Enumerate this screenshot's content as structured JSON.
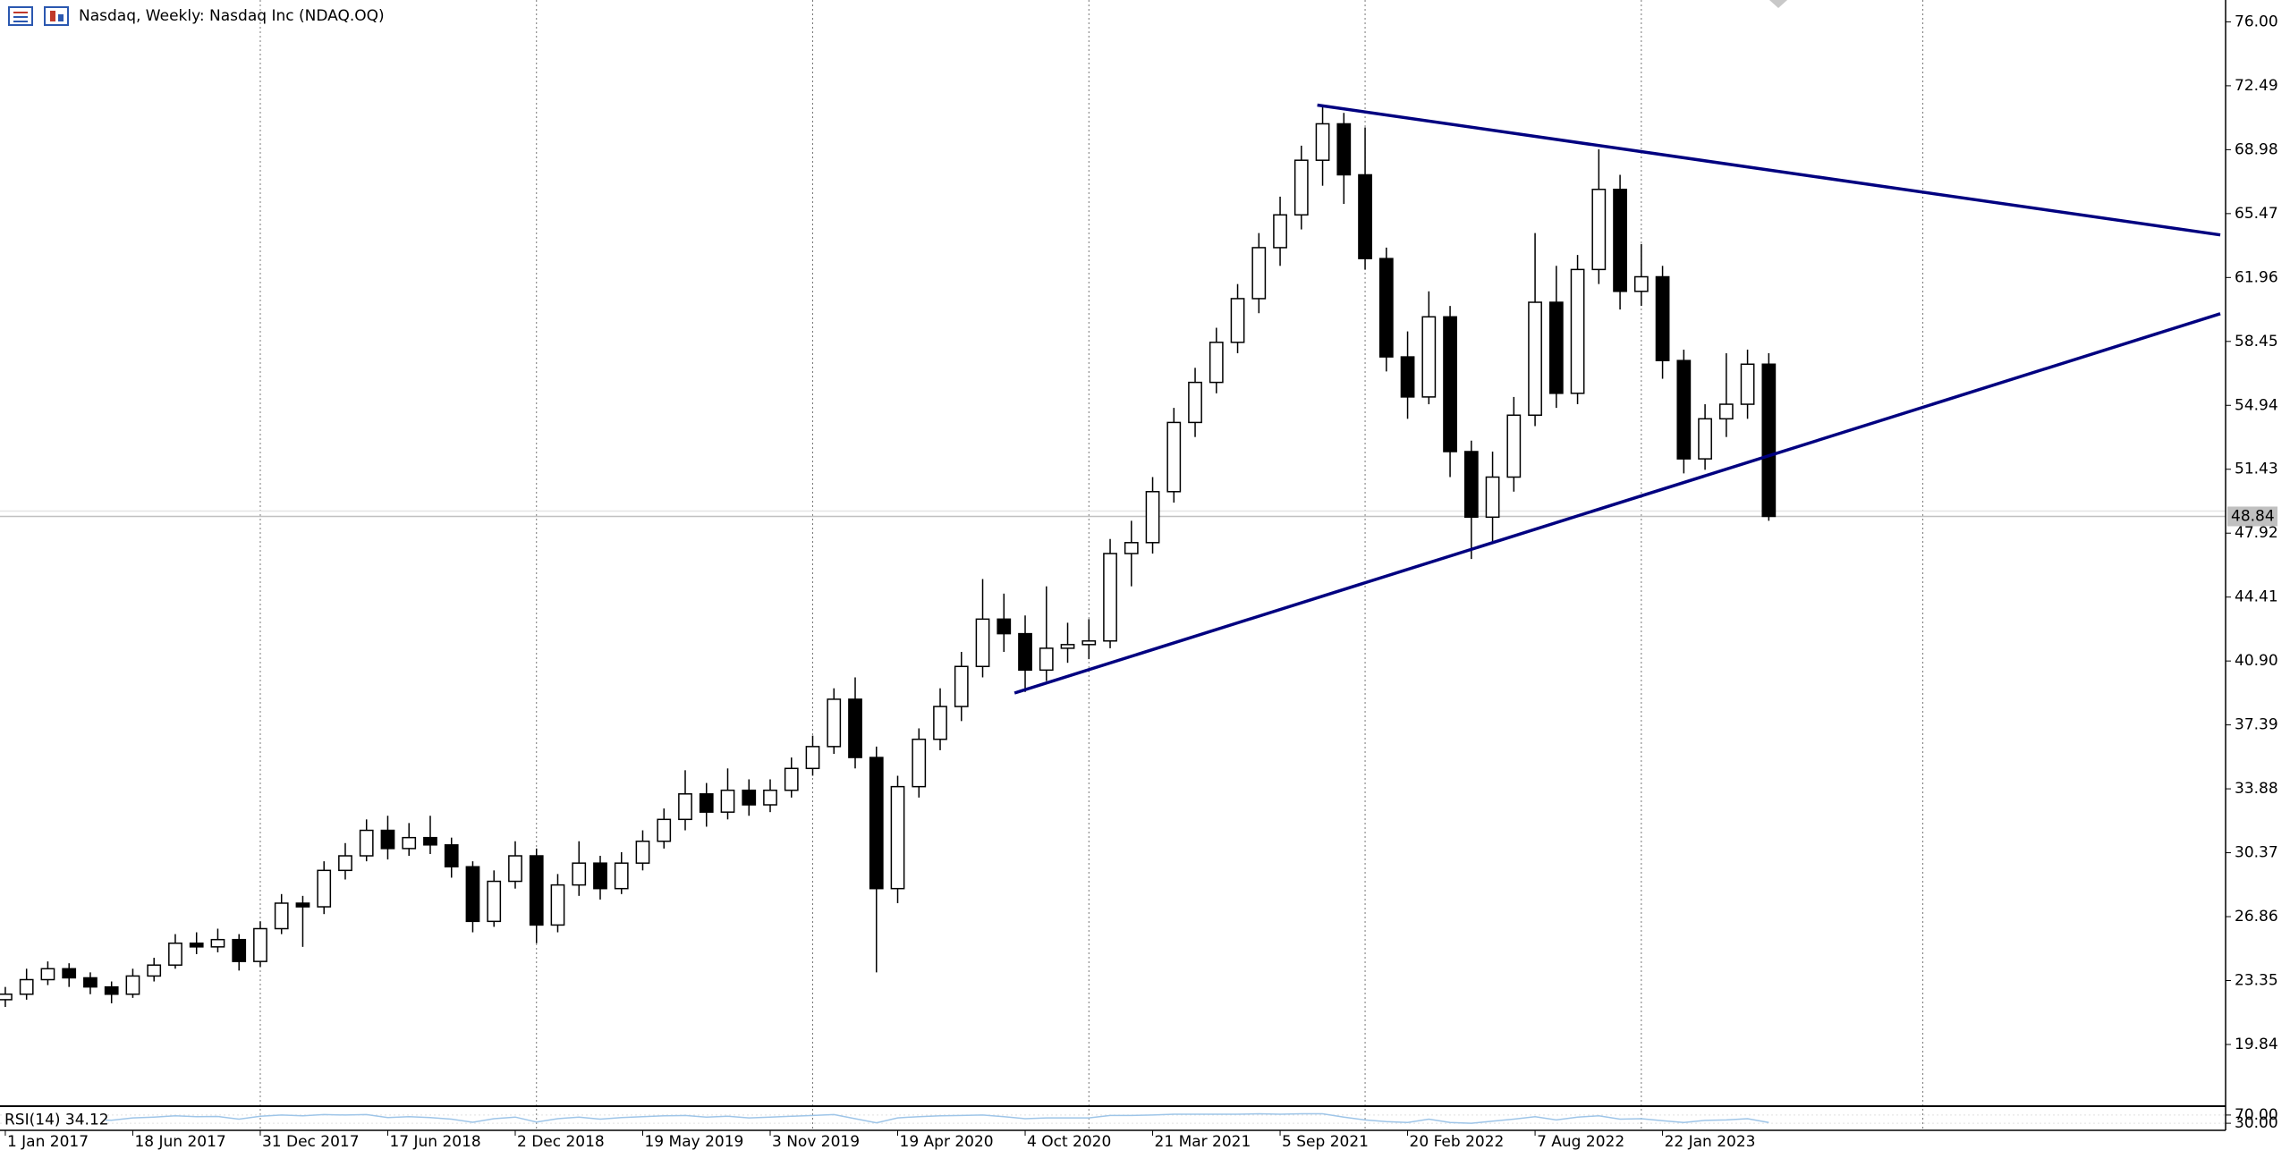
{
  "chart_data": {
    "type": "candlestick",
    "title": "Nasdaq, Weekly:  Nasdaq Inc (NDAQ.OQ)",
    "x": [
      0,
      4,
      8,
      12,
      16,
      20,
      24,
      28,
      32,
      36,
      40,
      44,
      48,
      52,
      56,
      60,
      64,
      68,
      72,
      76,
      80,
      84,
      88,
      92,
      96,
      100,
      104,
      108,
      112,
      116,
      120,
      124,
      128,
      132,
      136,
      140,
      144,
      148,
      152,
      156,
      160,
      164,
      168,
      172,
      176,
      180,
      184,
      188,
      192,
      196,
      200,
      204,
      208,
      212,
      216,
      220,
      224,
      228,
      232,
      236,
      240,
      244,
      248,
      252,
      256,
      260,
      264,
      268,
      272,
      276,
      280,
      284,
      288,
      292,
      296,
      300,
      304,
      308,
      312,
      316,
      320,
      324,
      328,
      332
    ],
    "open": [
      22.3,
      22.6,
      23.4,
      24.0,
      23.5,
      23.0,
      22.6,
      23.6,
      24.2,
      25.4,
      25.2,
      25.6,
      24.4,
      26.2,
      27.6,
      27.4,
      29.4,
      30.2,
      31.6,
      30.6,
      31.2,
      30.8,
      29.6,
      26.6,
      28.8,
      30.2,
      26.4,
      28.6,
      29.8,
      28.4,
      29.8,
      31.0,
      32.2,
      33.6,
      32.6,
      33.8,
      33.0,
      33.8,
      35.0,
      36.2,
      38.8,
      35.6,
      28.4,
      34.0,
      36.6,
      38.4,
      40.6,
      43.2,
      42.4,
      40.4,
      41.6,
      41.8,
      42.0,
      46.8,
      47.4,
      50.2,
      54.0,
      56.2,
      58.4,
      60.8,
      63.6,
      65.4,
      68.4,
      70.4,
      67.6,
      63.0,
      57.6,
      55.4,
      59.8,
      52.4,
      48.8,
      51.0,
      54.4,
      60.6,
      55.6,
      62.4,
      66.8,
      61.2,
      62.0,
      57.4,
      52.0,
      54.2,
      55.0,
      57.2
    ],
    "high": [
      23.0,
      24.0,
      24.4,
      24.3,
      23.8,
      23.3,
      24.0,
      24.6,
      25.9,
      26.0,
      26.2,
      25.9,
      26.6,
      28.1,
      28.0,
      29.9,
      30.9,
      32.2,
      32.4,
      32.0,
      32.4,
      31.2,
      29.9,
      29.4,
      31.0,
      30.6,
      29.2,
      31.0,
      30.2,
      30.4,
      31.6,
      32.8,
      34.9,
      34.2,
      35.0,
      34.4,
      34.4,
      35.6,
      36.8,
      39.4,
      40.0,
      36.2,
      34.6,
      37.2,
      39.4,
      41.4,
      45.4,
      44.6,
      43.4,
      45.0,
      43.0,
      43.2,
      47.6,
      48.6,
      51.0,
      54.8,
      57.0,
      59.2,
      61.6,
      64.4,
      66.4,
      69.2,
      71.4,
      71.0,
      70.2,
      63.6,
      59.0,
      61.2,
      60.4,
      53.0,
      52.4,
      55.4,
      64.4,
      62.6,
      63.2,
      69.0,
      67.6,
      63.8,
      62.6,
      58.0,
      55.0,
      57.8,
      58.0,
      57.8
    ],
    "low": [
      21.9,
      22.3,
      23.1,
      23.0,
      22.6,
      22.1,
      22.4,
      23.3,
      24.0,
      24.8,
      24.9,
      23.9,
      24.1,
      25.9,
      25.2,
      27.0,
      28.9,
      29.9,
      30.0,
      30.2,
      30.3,
      29.0,
      26.0,
      26.3,
      28.4,
      25.4,
      26.0,
      28.0,
      27.8,
      28.1,
      29.4,
      30.6,
      31.6,
      31.8,
      32.2,
      32.4,
      32.6,
      33.4,
      34.6,
      35.8,
      35.0,
      23.8,
      27.6,
      33.4,
      36.0,
      37.6,
      40.0,
      41.4,
      39.2,
      39.8,
      40.8,
      41.0,
      41.6,
      45.0,
      46.8,
      49.6,
      53.2,
      55.6,
      57.8,
      60.0,
      62.6,
      64.6,
      67.0,
      66.0,
      62.4,
      56.8,
      54.2,
      55.0,
      51.0,
      46.5,
      47.4,
      50.2,
      53.8,
      54.8,
      55.0,
      61.6,
      60.2,
      60.4,
      56.4,
      51.2,
      51.4,
      53.2,
      54.2,
      48.6
    ],
    "close": [
      22.6,
      23.4,
      24.0,
      23.5,
      23.0,
      22.6,
      23.6,
      24.2,
      25.4,
      25.2,
      25.6,
      24.4,
      26.2,
      27.6,
      27.4,
      29.4,
      30.2,
      31.6,
      30.6,
      31.2,
      30.8,
      29.6,
      26.6,
      28.8,
      30.2,
      26.4,
      28.6,
      29.8,
      28.4,
      29.8,
      31.0,
      32.2,
      33.6,
      32.6,
      33.8,
      33.0,
      33.8,
      35.0,
      36.2,
      38.8,
      35.6,
      28.4,
      34.0,
      36.6,
      38.4,
      40.6,
      43.2,
      42.4,
      40.4,
      41.6,
      41.8,
      42.0,
      46.8,
      47.4,
      50.2,
      54.0,
      56.2,
      58.4,
      60.8,
      63.6,
      65.4,
      68.4,
      70.4,
      67.6,
      63.0,
      57.6,
      55.4,
      59.8,
      52.4,
      48.8,
      51.0,
      54.4,
      60.6,
      55.6,
      62.4,
      66.8,
      61.2,
      62.0,
      57.4,
      52.0,
      54.2,
      55.0,
      57.2,
      48.84
    ],
    "xlim": [
      -1,
      418
    ],
    "xticks": [
      {
        "value": 0,
        "label": "1 Jan 2017"
      },
      {
        "value": 24,
        "label": "18 Jun 2017"
      },
      {
        "value": 48,
        "label": "31 Dec 2017"
      },
      {
        "value": 72,
        "label": "17 Jun 2018"
      },
      {
        "value": 96,
        "label": "2 Dec 2018"
      },
      {
        "value": 120,
        "label": "19 May 2019"
      },
      {
        "value": 144,
        "label": "3 Nov 2019"
      },
      {
        "value": 168,
        "label": "19 Apr 2020"
      },
      {
        "value": 192,
        "label": "4 Oct 2020"
      },
      {
        "value": 216,
        "label": "21 Mar 2021"
      },
      {
        "value": 240,
        "label": "5 Sep 2021"
      },
      {
        "value": 264,
        "label": "20 Feb 2022"
      },
      {
        "value": 288,
        "label": "7 Aug 2022"
      },
      {
        "value": 312,
        "label": "22 Jan 2023"
      }
    ],
    "xgrid": [
      48,
      100,
      152,
      204,
      256,
      308,
      361
    ],
    "ylim": [
      16.5,
      77.2
    ],
    "yticks": [
      {
        "value": 76,
        "label": "76.00"
      },
      72.49,
      68.98,
      65.47,
      61.96,
      58.45,
      54.94,
      51.43,
      47.92,
      44.41,
      {
        "value": 40.9,
        "label": "40.90"
      },
      37.39,
      33.88,
      30.37,
      26.86,
      23.35,
      19.84
    ],
    "last_price": 48.84,
    "trendlines": [
      {
        "x": [
          247,
          417
        ],
        "y": [
          71.43,
          64.3
        ],
        "color": "#000080"
      },
      {
        "x": [
          190,
          417
        ],
        "y": [
          39.14,
          59.97
        ],
        "color": "#000080"
      }
    ],
    "indicator": {
      "label": "RSI(14) 34.12",
      "color": "#9ec5e8",
      "ylim": [
        0,
        100
      ],
      "yticks": [
        {
          "value": 70,
          "label": "70.00"
        },
        {
          "value": 30,
          "label": "30.00"
        }
      ],
      "values": [
        55,
        60,
        62,
        55,
        48,
        45,
        56,
        60,
        66,
        62,
        63,
        50,
        64,
        70,
        66,
        72,
        70,
        72,
        58,
        62,
        58,
        50,
        35,
        52,
        60,
        36,
        52,
        60,
        50,
        58,
        62,
        66,
        68,
        60,
        64,
        56,
        60,
        64,
        68,
        72,
        52,
        32,
        56,
        62,
        66,
        68,
        70,
        62,
        52,
        56,
        56,
        56,
        68,
        68,
        70,
        74,
        74,
        74,
        74,
        76,
        74,
        76,
        76,
        60,
        46,
        38,
        34,
        50,
        34,
        30,
        40,
        50,
        62,
        46,
        60,
        66,
        50,
        52,
        42,
        34,
        44,
        46,
        52,
        34.12
      ]
    }
  }
}
